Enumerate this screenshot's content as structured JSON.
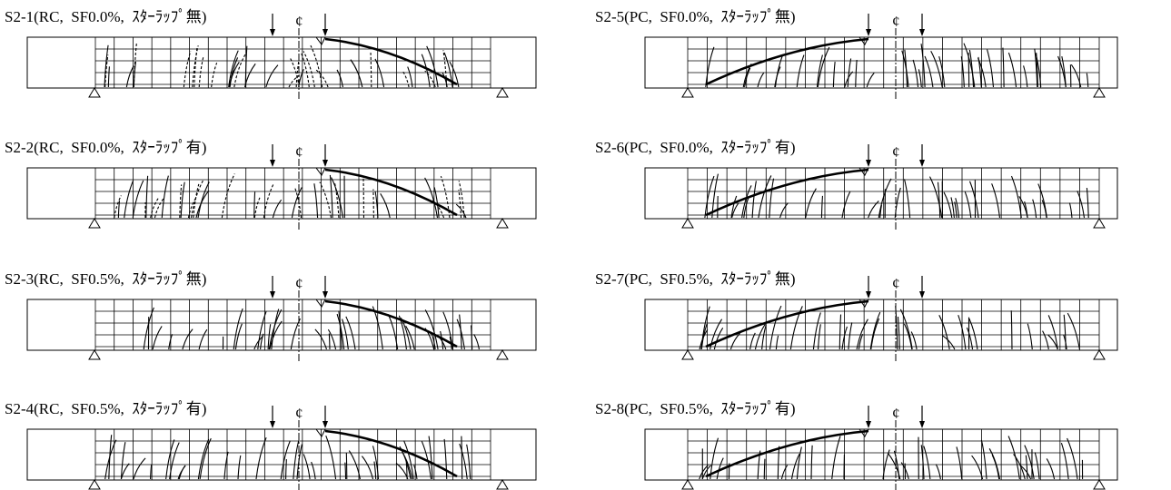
{
  "panels": [
    {
      "label": "S2-1(RC,  SF0.0%,  ｽﾀｰﾗｯﾌﾟ無)",
      "center_mark": "¢"
    },
    {
      "label": "S2-2(RC,  SF0.0%,  ｽﾀｰﾗｯﾌﾟ有)",
      "center_mark": "¢"
    },
    {
      "label": "S2-3(RC,  SF0.5%,  ｽﾀｰﾗｯﾌﾟ無)",
      "center_mark": "¢"
    },
    {
      "label": "S2-4(RC,  SF0.5%,  ｽﾀｰﾗｯﾌﾟ有)",
      "center_mark": "¢"
    },
    {
      "label": "S2-5(PC,  SF0.0%,  ｽﾀｰﾗｯﾌﾟ無)",
      "center_mark": "¢"
    },
    {
      "label": "S2-6(PC,  SF0.0%,  ｽﾀｰﾗｯﾌﾟ有)",
      "center_mark": "¢"
    },
    {
      "label": "S2-7(PC,  SF0.5%,  ｽﾀｰﾗｯﾌﾟ無)",
      "center_mark": "¢"
    },
    {
      "label": "S2-8(PC,  SF0.5%,  ｽﾀｰﾗｯﾌﾟ有)",
      "center_mark": "¢"
    }
  ]
}
